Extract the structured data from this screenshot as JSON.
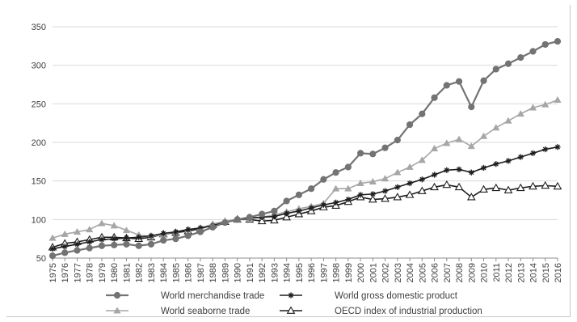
{
  "chart_data": {
    "type": "line",
    "title": "",
    "xlabel": "",
    "ylabel": "",
    "ylim": [
      50,
      350
    ],
    "yticks": [
      50,
      100,
      150,
      200,
      250,
      300,
      350
    ],
    "grid": "horizontal",
    "legend_position": "bottom",
    "x": [
      1975,
      1976,
      1977,
      1978,
      1979,
      1980,
      1981,
      1982,
      1983,
      1984,
      1985,
      1986,
      1987,
      1988,
      1989,
      1990,
      1991,
      1992,
      1993,
      1994,
      1995,
      1996,
      1997,
      1998,
      1999,
      2000,
      2001,
      2002,
      2003,
      2004,
      2005,
      2006,
      2007,
      2008,
      2009,
      2010,
      2011,
      2012,
      2013,
      2014,
      2015,
      2016
    ],
    "x_tick_labels": [
      "1975",
      "1976",
      "1977",
      "1978",
      "1979",
      "1980",
      "1981",
      "1982",
      "1983",
      "1984",
      "1985",
      "1986",
      "1987",
      "1988",
      "1989",
      "1990",
      "1991",
      "1992",
      "1993",
      "1994",
      "1995",
      "1996",
      "1997",
      "1998",
      "1999",
      "2000",
      "2001",
      "2002",
      "2003",
      "2004",
      "2005",
      "2006",
      "2007",
      "2008",
      "2009",
      "2010",
      "2011",
      "2012",
      "2013",
      "2014",
      "2015",
      "2016"
    ],
    "series": [
      {
        "name": "World merchandise trade",
        "color": "#737373",
        "marker": "circle",
        "values": [
          53,
          57,
          60,
          63,
          66,
          67,
          68,
          66,
          68,
          73,
          75,
          79,
          84,
          90,
          96,
          100,
          103,
          107,
          111,
          124,
          132,
          140,
          152,
          161,
          168,
          186,
          185,
          193,
          203,
          223,
          237,
          258,
          274,
          279,
          246,
          280,
          295,
          302,
          310,
          318,
          327,
          331
        ]
      },
      {
        "name": "World gross domestic product",
        "color": "#1e1e1e",
        "marker": "asterisk",
        "values": [
          62,
          65,
          68,
          71,
          74,
          75,
          76,
          77,
          79,
          82,
          84,
          87,
          89,
          92,
          96,
          100,
          102,
          103,
          104,
          108,
          111,
          115,
          119,
          122,
          126,
          132,
          133,
          137,
          142,
          147,
          152,
          158,
          164,
          165,
          161,
          167,
          172,
          176,
          181,
          186,
          191,
          194
        ]
      },
      {
        "name": "World seaborne trade",
        "color": "#a6a6a6",
        "marker": "triangle-filled",
        "values": [
          76,
          81,
          84,
          87,
          95,
          92,
          86,
          80,
          78,
          81,
          84,
          87,
          89,
          94,
          98,
          100,
          101,
          103,
          106,
          110,
          114,
          117,
          121,
          140,
          140,
          147,
          149,
          153,
          161,
          168,
          177,
          192,
          199,
          204,
          195,
          208,
          219,
          228,
          237,
          245,
          249,
          255
        ]
      },
      {
        "name": "OECD index of industrial production",
        "color": "#1e1e1e",
        "marker": "triangle-open",
        "values": [
          64,
          69,
          71,
          74,
          77,
          77,
          76,
          75,
          77,
          81,
          83,
          85,
          88,
          93,
          97,
          100,
          100,
          98,
          99,
          103,
          107,
          111,
          116,
          118,
          123,
          129,
          126,
          127,
          129,
          132,
          137,
          142,
          145,
          142,
          129,
          139,
          141,
          138,
          141,
          143,
          144,
          143
        ]
      }
    ]
  }
}
